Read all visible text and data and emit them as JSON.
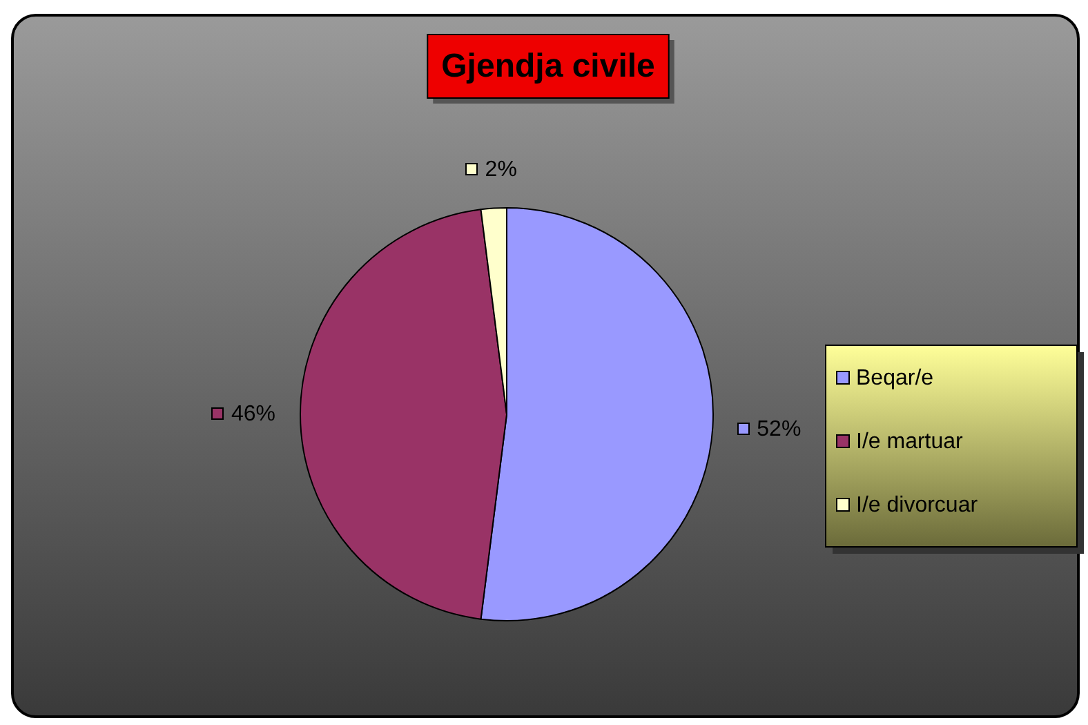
{
  "chart_data": {
    "type": "pie",
    "title": "Gjendja civile",
    "categories": [
      "Beqar/e",
      "I/e martuar",
      "I/e divorcuar"
    ],
    "values": [
      52,
      46,
      2
    ],
    "colors": [
      "#9999ff",
      "#993366",
      "#ffffcc"
    ],
    "value_labels": [
      "52%",
      "46%",
      "2%"
    ],
    "legend": "right"
  }
}
